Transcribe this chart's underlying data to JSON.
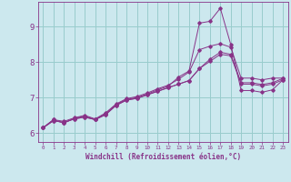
{
  "title": "",
  "xlabel": "Windchill (Refroidissement éolien,°C)",
  "ylabel": "",
  "bg_color": "#cce8ee",
  "line_color": "#883388",
  "grid_color": "#99cccc",
  "xlim": [
    -0.5,
    23.5
  ],
  "ylim": [
    5.75,
    9.7
  ],
  "yticks": [
    6,
    7,
    8,
    9
  ],
  "xticks": [
    0,
    1,
    2,
    3,
    4,
    5,
    6,
    7,
    8,
    9,
    10,
    11,
    12,
    13,
    14,
    15,
    16,
    17,
    18,
    19,
    20,
    21,
    22,
    23
  ],
  "series": [
    [
      6.15,
      6.35,
      6.3,
      6.4,
      6.45,
      6.38,
      6.52,
      6.78,
      6.93,
      6.98,
      7.08,
      7.18,
      7.28,
      7.38,
      7.48,
      7.82,
      8.02,
      8.22,
      8.18,
      7.38,
      7.38,
      7.33,
      7.38,
      7.5
    ],
    [
      6.15,
      6.35,
      6.3,
      6.4,
      6.45,
      6.38,
      6.52,
      6.78,
      6.93,
      6.98,
      7.08,
      7.18,
      7.28,
      7.38,
      7.48,
      7.82,
      8.08,
      8.28,
      8.22,
      7.42,
      7.42,
      7.37,
      7.42,
      7.54
    ],
    [
      6.15,
      6.38,
      6.33,
      6.43,
      6.5,
      6.4,
      6.57,
      6.82,
      6.97,
      7.03,
      7.13,
      7.25,
      7.35,
      7.52,
      7.72,
      8.35,
      8.45,
      8.52,
      8.42,
      7.55,
      7.55,
      7.5,
      7.55,
      7.55
    ],
    [
      6.15,
      6.38,
      6.28,
      6.42,
      6.48,
      6.38,
      6.55,
      6.8,
      6.95,
      7.0,
      7.1,
      7.22,
      7.32,
      7.58,
      7.75,
      9.1,
      9.15,
      9.52,
      8.5,
      7.2,
      7.2,
      7.15,
      7.22,
      7.5
    ]
  ]
}
